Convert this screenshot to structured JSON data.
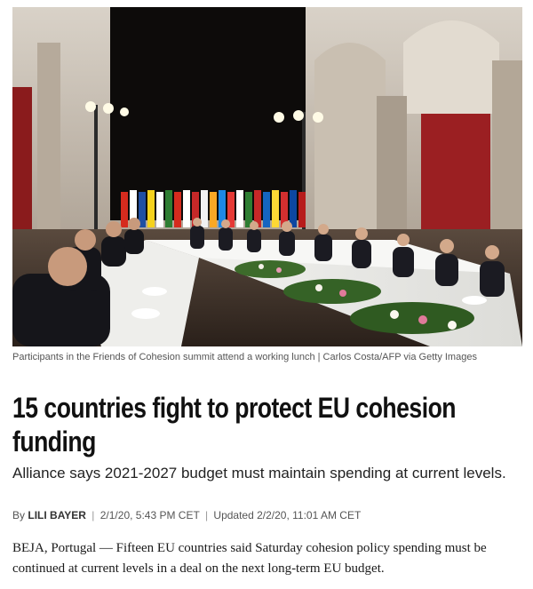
{
  "photo": {
    "caption": "Participants in the Friends of Cohesion summit attend a working lunch | Carlos Costa/AFP via Getty Images"
  },
  "article": {
    "headline": "15 countries fight to protect EU cohesion funding",
    "subheadline": "Alliance says 2021-2027 budget must maintain spending at current levels.",
    "byline": {
      "prefix": "By",
      "author": "LILI BAYER",
      "published": "2/1/20, 5:43 PM CET",
      "updated": "Updated 2/2/20, 11:01 AM CET"
    },
    "lead": "BEJA, Portugal — Fifteen EU countries said Saturday cohesion policy spending must be continued at current levels in a deal on the next long-term EU budget."
  }
}
